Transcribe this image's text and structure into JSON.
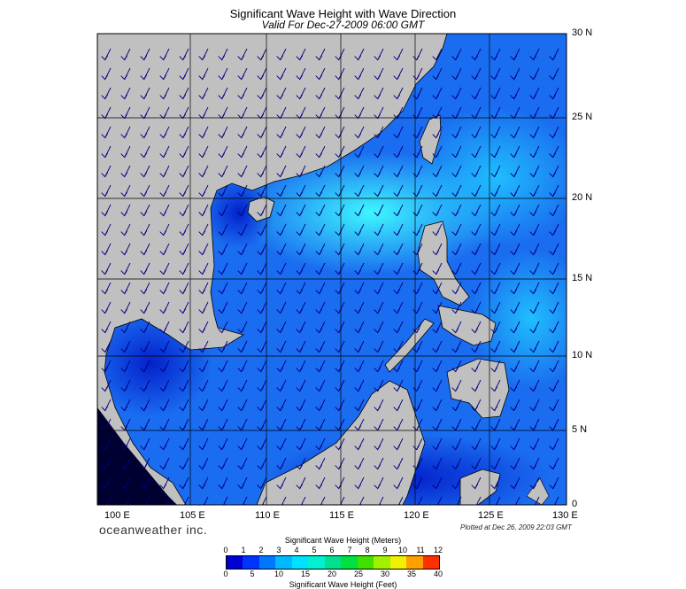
{
  "header": {
    "title": "Significant Wave Height with Wave Direction",
    "subtitle": "Valid For Dec-27-2009 06:00 GMT"
  },
  "map": {
    "lon_labels": [
      "100 E",
      "105 E",
      "110 E",
      "115 E",
      "120 E",
      "125 E",
      "130 E"
    ],
    "lat_labels": [
      "30 N",
      "25 N",
      "20 N",
      "15 N",
      "10 N",
      "5 N",
      "0"
    ],
    "land_color": "#c0c0c0",
    "sea_color": "#1a6cf0",
    "arrow_color": "#000080"
  },
  "footer": {
    "brand": "oceanweather inc.",
    "plotted": "Plotted at Dec 26, 2009 22:03 GMT"
  },
  "legend": {
    "meters_title": "Significant Wave Height (Meters)",
    "meters_ticks": [
      "0",
      "1",
      "2",
      "3",
      "4",
      "5",
      "6",
      "7",
      "8",
      "9",
      "10",
      "11",
      "12"
    ],
    "feet_title": "Significant Wave Height (Feet)",
    "feet_ticks": [
      "0",
      "5",
      "10",
      "15",
      "20",
      "25",
      "30",
      "35",
      "40"
    ],
    "colors": [
      "#0000d0",
      "#0033ff",
      "#0077ff",
      "#00b8ff",
      "#00e0ff",
      "#00f0d0",
      "#00e090",
      "#00e040",
      "#40e000",
      "#a0f000",
      "#f0f000",
      "#ffa000",
      "#ff3000"
    ]
  }
}
